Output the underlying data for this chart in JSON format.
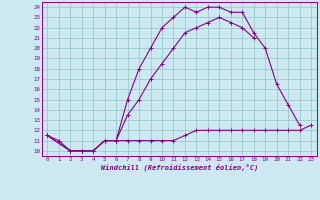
{
  "xlabel": "Windchill (Refroidissement éolien,°C)",
  "bg_color": "#cce8f0",
  "line_color": "#880088",
  "grid_color": "#99cccc",
  "xlim": [
    -0.5,
    23.5
  ],
  "ylim": [
    9.5,
    24.5
  ],
  "yticks": [
    10,
    11,
    12,
    13,
    14,
    15,
    16,
    17,
    18,
    19,
    20,
    21,
    22,
    23,
    24
  ],
  "xticks": [
    0,
    1,
    2,
    3,
    4,
    5,
    6,
    7,
    8,
    9,
    10,
    11,
    12,
    13,
    14,
    15,
    16,
    17,
    18,
    19,
    20,
    21,
    22,
    23
  ],
  "line1_x": [
    0,
    1,
    2,
    3,
    4,
    5,
    6,
    7,
    8,
    9,
    10,
    11,
    12,
    13,
    14,
    15,
    16,
    17,
    18,
    19,
    20,
    21,
    22,
    23
  ],
  "line1_y": [
    11.5,
    11.0,
    10.0,
    10.0,
    10.0,
    11.0,
    11.0,
    11.0,
    11.0,
    11.0,
    11.0,
    11.0,
    11.5,
    12.0,
    12.0,
    12.0,
    12.0,
    12.0,
    12.0,
    12.0,
    12.0,
    12.0,
    12.0,
    12.5
  ],
  "line2_x": [
    0,
    2,
    3,
    4,
    5,
    6,
    7,
    8,
    9,
    10,
    11,
    12,
    13,
    14,
    15,
    16,
    17,
    18,
    19,
    20,
    21,
    22
  ],
  "line2_y": [
    11.5,
    10.0,
    10.0,
    10.0,
    11.0,
    11.0,
    15.0,
    18.0,
    20.0,
    22.0,
    23.0,
    24.0,
    23.5,
    24.0,
    24.0,
    23.5,
    23.5,
    21.5,
    20.0,
    16.5,
    14.5,
    12.5
  ],
  "line3_x": [
    0,
    2,
    3,
    4,
    5,
    6,
    7,
    8,
    9,
    10,
    11,
    12,
    13,
    14,
    15,
    16,
    17,
    18
  ],
  "line3_y": [
    11.5,
    10.0,
    10.0,
    10.0,
    11.0,
    11.0,
    13.5,
    15.0,
    17.0,
    18.5,
    20.0,
    21.5,
    22.0,
    22.5,
    23.0,
    22.5,
    22.0,
    21.0
  ]
}
